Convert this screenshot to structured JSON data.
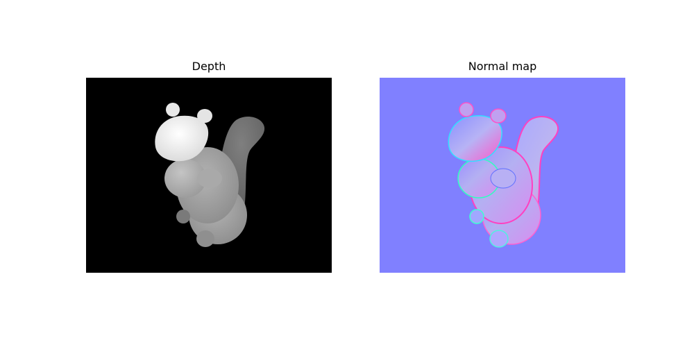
{
  "panels": [
    {
      "title": "Depth",
      "background": "#000000"
    },
    {
      "title": "Normal map",
      "background": "#8080ff"
    }
  ]
}
